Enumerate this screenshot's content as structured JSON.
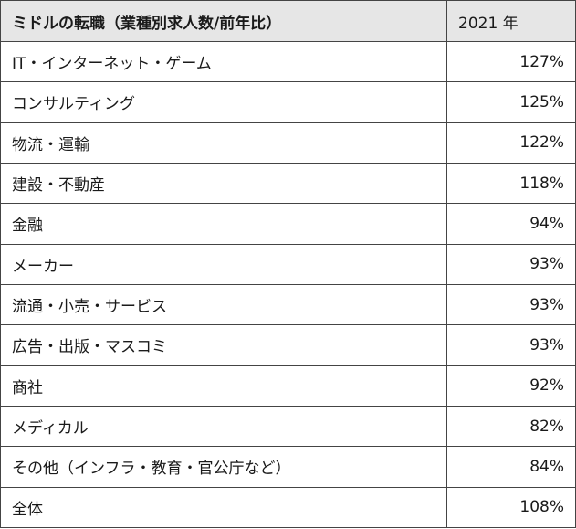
{
  "table": {
    "header": {
      "category": "ミドルの転職（業種別求人数/前年比）",
      "year": "2021 年"
    },
    "rows": [
      {
        "label": "IT・インターネット・ゲーム",
        "value": "127%"
      },
      {
        "label": "コンサルティング",
        "value": "125%"
      },
      {
        "label": "物流・運輸",
        "value": "122%"
      },
      {
        "label": "建設・不動産",
        "value": "118%"
      },
      {
        "label": "金融",
        "value": "94%"
      },
      {
        "label": "メーカー",
        "value": "93%"
      },
      {
        "label": "流通・小売・サービス",
        "value": "93%"
      },
      {
        "label": "広告・出版・マスコミ",
        "value": "93%"
      },
      {
        "label": "商社",
        "value": "92%"
      },
      {
        "label": "メディカル",
        "value": "82%"
      },
      {
        "label": "その他（インフラ・教育・官公庁など）",
        "value": "84%"
      },
      {
        "label": "全体",
        "value": "108%"
      }
    ]
  },
  "colors": {
    "header_bg": "#e6e6e6",
    "border": "#444444",
    "text": "#1a1a1a"
  }
}
